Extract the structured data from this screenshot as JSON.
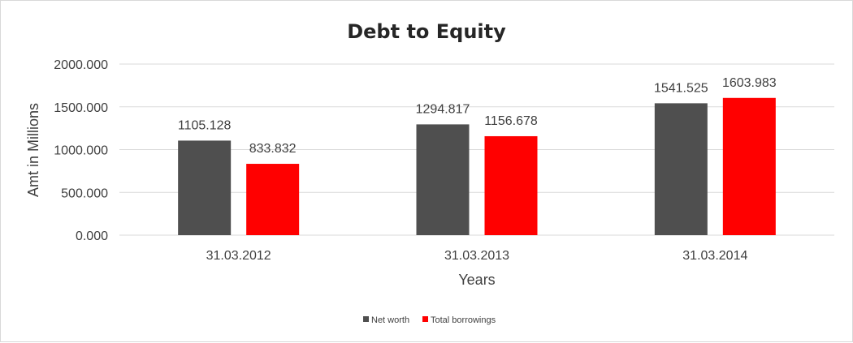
{
  "chart_data": {
    "type": "bar",
    "title": "Debt to Equity",
    "xlabel": "Years",
    "ylabel": "Amt in Millions",
    "categories": [
      "31.03.2012",
      "31.03.2013",
      "31.03.2014"
    ],
    "series": [
      {
        "name": "Net worth",
        "color": "#4f4f4f",
        "values": [
          1105.128,
          1294.817,
          1541.525
        ],
        "labels": [
          "1105.128",
          "1294.817",
          "1541.525"
        ]
      },
      {
        "name": "Total borrowings",
        "color": "#ff0000",
        "values": [
          833.832,
          1156.678,
          1603.983
        ],
        "labels": [
          "833.832",
          "1156.678",
          "1603.983"
        ]
      }
    ],
    "ylim": [
      0,
      2000
    ],
    "yticks": [
      0,
      500,
      1000,
      1500,
      2000
    ],
    "ytick_labels": [
      "0.000",
      "500.000",
      "1000.000",
      "1500.000",
      "2000.000"
    ],
    "grid": true,
    "legend_position": "bottom"
  }
}
